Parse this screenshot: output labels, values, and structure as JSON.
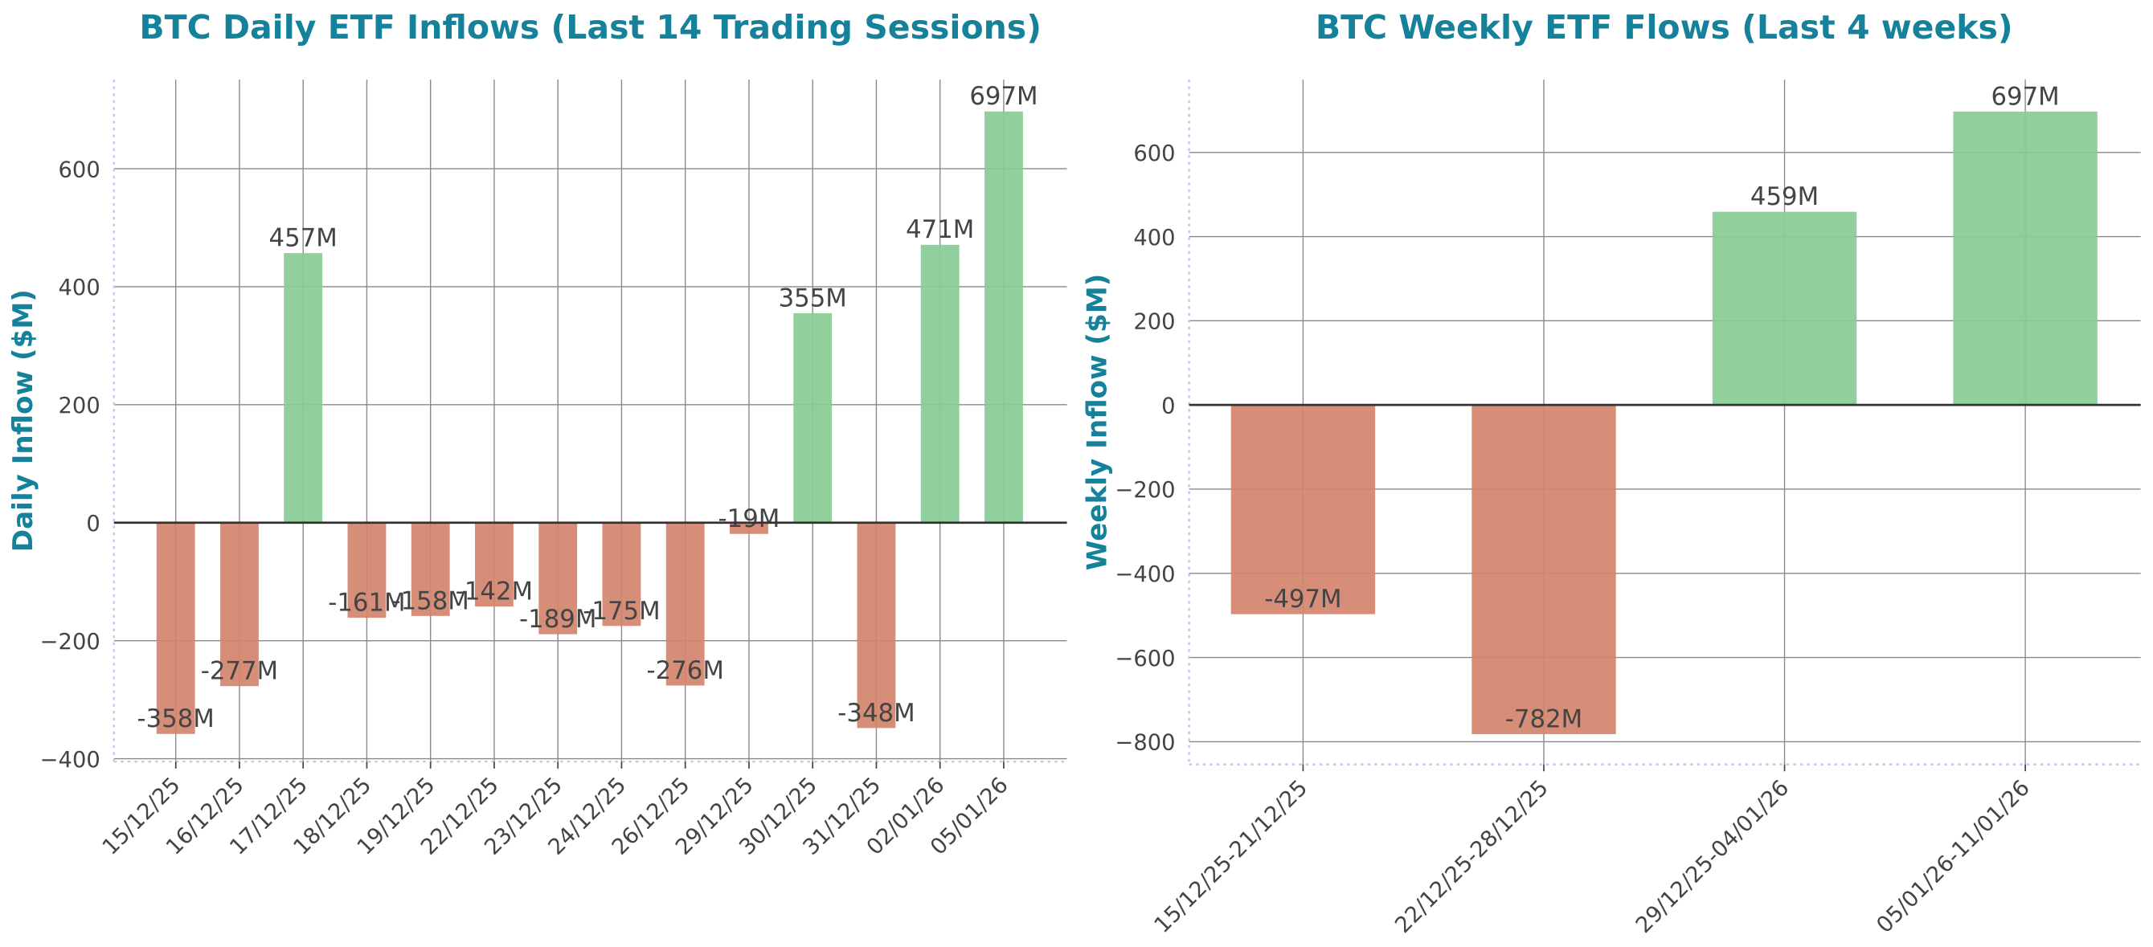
{
  "chart_data": [
    {
      "type": "bar",
      "title": "BTC Daily ETF Inflows (Last 14 Trading Sessions)",
      "ylabel": "Daily Inflow ($M)",
      "categories": [
        "15/12/25",
        "16/12/25",
        "17/12/25",
        "18/12/25",
        "19/12/25",
        "22/12/25",
        "23/12/25",
        "24/12/25",
        "26/12/25",
        "29/12/25",
        "30/12/25",
        "31/12/25",
        "02/01/26",
        "05/01/26"
      ],
      "values": [
        -358,
        -277,
        457,
        -161,
        -158,
        -142,
        -189,
        -175,
        -276,
        -19,
        355,
        -348,
        471,
        697
      ],
      "value_labels": [
        "-358M",
        "-277M",
        "457M",
        "-161M",
        "-158M",
        "-142M",
        "-189M",
        "-175M",
        "-276M",
        "-19M",
        "355M",
        "-348M",
        "471M",
        "697M"
      ],
      "colors": [
        "#d4846c",
        "#d4846c",
        "#88cb95",
        "#d4846c",
        "#d4846c",
        "#d4846c",
        "#d4846c",
        "#d4846c",
        "#d4846c",
        "#d4846c",
        "#88cb95",
        "#d4846c",
        "#88cb95",
        "#88cb95"
      ],
      "ylim": [
        -405,
        751
      ],
      "yticks": [
        {
          "value": -400,
          "label": "−400"
        },
        {
          "value": -200,
          "label": "−200"
        },
        0,
        200,
        400,
        600
      ],
      "grid": true
    },
    {
      "type": "bar",
      "title": "BTC Weekly ETF Flows (Last 4 weeks)",
      "ylabel": "Weekly Inflow ($M)",
      "categories": [
        "15/12/25-21/12/25",
        "22/12/25-28/12/25",
        "29/12/25-04/01/26",
        "05/01/26-11/01/26"
      ],
      "values": [
        -497,
        -782,
        459,
        697
      ],
      "value_labels": [
        "-497M",
        "-782M",
        "459M",
        "697M"
      ],
      "colors": [
        "#d4846c",
        "#d4846c",
        "#88cb95",
        "#88cb95"
      ],
      "ylim": [
        -854,
        773
      ],
      "yticks": [
        {
          "value": -800,
          "label": "−800"
        },
        {
          "value": -600,
          "label": "−600"
        },
        {
          "value": -400,
          "label": "−400"
        },
        {
          "value": -200,
          "label": "−200"
        },
        0,
        200,
        400,
        600
      ],
      "grid": true
    }
  ]
}
